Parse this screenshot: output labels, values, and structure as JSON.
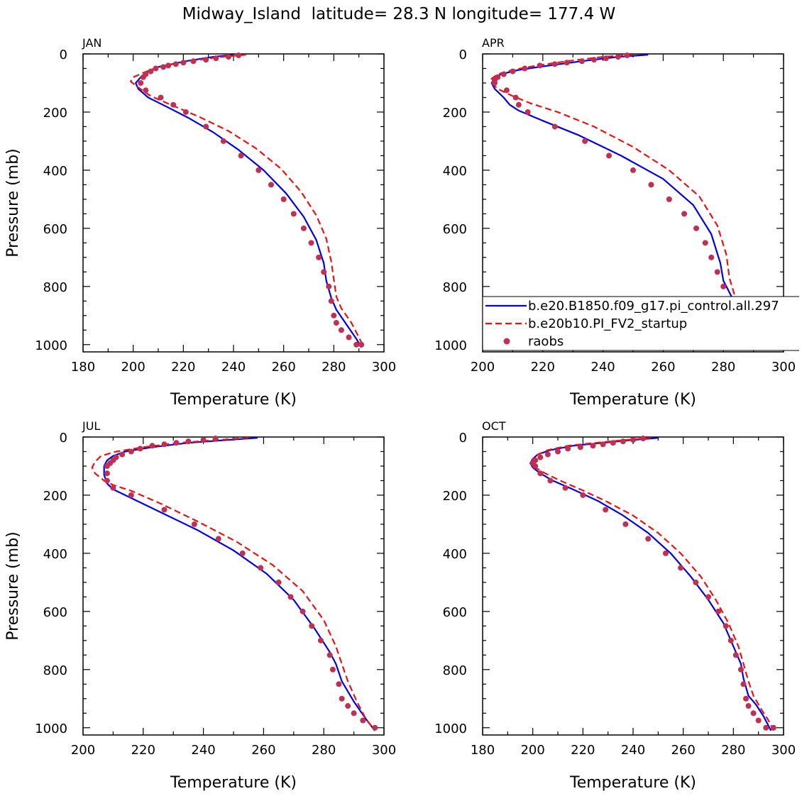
{
  "figure": {
    "title": "Midway_Island  latitude= 28.3 N longitude= 177.4 W"
  },
  "legend": {
    "entries": [
      {
        "label": "b.e20.B1850.f09_g17.pi_control.all.297",
        "style": "solid",
        "color": "#0000ee"
      },
      {
        "label": "b.e20b10.PI_FV2_startup",
        "style": "dashed",
        "color": "#ee1111"
      },
      {
        "label": "raobs",
        "style": "dots",
        "color": "#c03050"
      }
    ]
  },
  "chart_data": [
    {
      "type": "line",
      "title": "JAN",
      "xlabel": "Temperature (K)",
      "ylabel": "Pressure (mb)",
      "xlim": [
        180,
        300
      ],
      "ylim": [
        1025,
        0
      ],
      "xticks": [
        "180",
        "200",
        "220",
        "240",
        "260",
        "280",
        "300"
      ],
      "yticks": [
        "0",
        "200",
        "400",
        "600",
        "800",
        "1000"
      ],
      "grid": false,
      "series": [
        {
          "name": "b.e20.B1850.f09_g17.pi_control.all.297",
          "style": "solid",
          "x": [
            240,
            232,
            221,
            210,
            205,
            203,
            201,
            202,
            206,
            213,
            222,
            232,
            242,
            252,
            261,
            268,
            273,
            276,
            277,
            279,
            281,
            285,
            289,
            291
          ],
          "y": [
            3,
            10,
            25,
            45,
            65,
            80,
            100,
            120,
            150,
            180,
            220,
            270,
            330,
            400,
            480,
            560,
            640,
            720,
            780,
            840,
            880,
            930,
            980,
            1010
          ]
        },
        {
          "name": "b.e20b10.PI_FV2_startup",
          "style": "dashed",
          "x": [
            245,
            235,
            222,
            210,
            204,
            200,
            199,
            202,
            207,
            215,
            226,
            238,
            249,
            259,
            267,
            273,
            277,
            279,
            280,
            281,
            283,
            287,
            290,
            292
          ],
          "y": [
            3,
            10,
            25,
            45,
            65,
            80,
            95,
            115,
            145,
            175,
            215,
            265,
            325,
            395,
            475,
            555,
            635,
            715,
            775,
            835,
            875,
            925,
            975,
            1010
          ]
        },
        {
          "name": "raobs",
          "style": "dots",
          "x": [
            242,
            238,
            233,
            229,
            224,
            220,
            217,
            214,
            212,
            209,
            207,
            205,
            204,
            203,
            205,
            211,
            216,
            221,
            229,
            236,
            243,
            250,
            255,
            260,
            264,
            268,
            271,
            274,
            276,
            278,
            279,
            280,
            281,
            283,
            286,
            289,
            291
          ],
          "y": [
            5,
            10,
            15,
            20,
            25,
            30,
            35,
            40,
            45,
            50,
            60,
            70,
            80,
            100,
            125,
            150,
            175,
            200,
            250,
            300,
            350,
            400,
            450,
            500,
            550,
            600,
            650,
            700,
            750,
            800,
            850,
            900,
            925,
            950,
            975,
            1000,
            1000
          ]
        }
      ]
    },
    {
      "type": "line",
      "title": "APR",
      "xlabel": "Temperature (K)",
      "ylabel": "",
      "xlim": [
        200,
        300
      ],
      "ylim": [
        1025,
        0
      ],
      "xticks": [
        "200",
        "220",
        "240",
        "260",
        "280",
        "300"
      ],
      "yticks": [
        "0",
        "200",
        "400",
        "600",
        "800",
        "1000"
      ],
      "grid": false,
      "series": [
        {
          "name": "b.e20.B1850.f09_g17.pi_control.all.297",
          "style": "solid",
          "x": [
            255,
            245,
            233,
            222,
            212,
            206,
            204,
            203,
            204,
            207,
            209,
            212,
            220,
            232,
            246,
            260,
            270,
            276,
            279,
            280,
            283,
            286,
            289,
            290
          ],
          "y": [
            3,
            10,
            25,
            40,
            55,
            70,
            85,
            100,
            120,
            150,
            175,
            195,
            230,
            280,
            350,
            430,
            520,
            620,
            720,
            780,
            840,
            900,
            960,
            1010
          ]
        },
        {
          "name": "b.e20b10.PI_FV2_startup",
          "style": "dashed",
          "x": [
            250,
            240,
            228,
            218,
            210,
            205,
            203,
            203,
            205,
            210,
            216,
            225,
            237,
            250,
            262,
            272,
            278,
            281,
            282,
            284,
            287,
            290,
            293
          ],
          "y": [
            3,
            10,
            25,
            40,
            55,
            70,
            85,
            100,
            120,
            145,
            170,
            200,
            250,
            320,
            400,
            490,
            590,
            690,
            770,
            840,
            900,
            960,
            1010
          ]
        },
        {
          "name": "raobs",
          "style": "dots",
          "x": [
            248,
            245,
            241,
            237,
            233,
            228,
            224,
            219,
            214,
            210,
            207,
            205,
            204,
            204,
            208,
            211,
            212,
            215,
            224,
            234,
            242,
            250,
            256,
            262,
            267,
            271,
            274,
            276,
            278,
            280,
            281,
            282,
            284,
            287,
            290,
            292
          ],
          "y": [
            5,
            10,
            15,
            20,
            25,
            30,
            35,
            40,
            50,
            60,
            70,
            80,
            90,
            100,
            125,
            150,
            175,
            200,
            250,
            300,
            350,
            400,
            450,
            500,
            550,
            600,
            650,
            700,
            750,
            800,
            850,
            900,
            925,
            950,
            975,
            1000
          ]
        }
      ]
    },
    {
      "type": "line",
      "title": "JUL",
      "xlabel": "Temperature (K)",
      "ylabel": "Pressure (mb)",
      "xlim": [
        200,
        300
      ],
      "ylim": [
        1025,
        0
      ],
      "xticks": [
        "200",
        "220",
        "240",
        "260",
        "280",
        "300"
      ],
      "yticks": [
        "0",
        "200",
        "400",
        "600",
        "800",
        "1000"
      ],
      "grid": false,
      "series": [
        {
          "name": "b.e20.B1850.f09_g17.pi_control.all.297",
          "style": "solid",
          "x": [
            258,
            248,
            235,
            223,
            214,
            210,
            208,
            207,
            207,
            208,
            210,
            216,
            226,
            238,
            250,
            261,
            270,
            277,
            282,
            284,
            286,
            290,
            294,
            297
          ],
          "y": [
            3,
            10,
            20,
            35,
            50,
            65,
            80,
            100,
            130,
            160,
            180,
            210,
            260,
            320,
            390,
            470,
            560,
            660,
            740,
            780,
            840,
            910,
            970,
            1010
          ]
        },
        {
          "name": "b.e20b10.PI_FV2_startup",
          "style": "dashed",
          "x": [
            255,
            245,
            232,
            220,
            211,
            206,
            204,
            203,
            204,
            207,
            210,
            216,
            226,
            238,
            251,
            263,
            273,
            280,
            284,
            286,
            288,
            291,
            294,
            297
          ],
          "y": [
            3,
            10,
            20,
            35,
            50,
            65,
            85,
            105,
            125,
            150,
            165,
            185,
            230,
            290,
            360,
            440,
            530,
            630,
            720,
            780,
            840,
            910,
            970,
            1010
          ]
        },
        {
          "name": "raobs",
          "style": "dots",
          "x": [
            244,
            240,
            235,
            231,
            227,
            223,
            219,
            216,
            213,
            211,
            210,
            209,
            208,
            208,
            208,
            210,
            216,
            227,
            237,
            245,
            253,
            259,
            265,
            269,
            273,
            276,
            279,
            282,
            283,
            285,
            286,
            288,
            290,
            293,
            297
          ],
          "y": [
            5,
            10,
            15,
            20,
            25,
            30,
            40,
            50,
            60,
            70,
            80,
            90,
            100,
            125,
            150,
            175,
            200,
            250,
            300,
            350,
            400,
            450,
            500,
            550,
            600,
            650,
            700,
            750,
            800,
            850,
            900,
            925,
            950,
            975,
            1000
          ]
        }
      ]
    },
    {
      "type": "line",
      "title": "OCT",
      "xlabel": "Temperature (K)",
      "ylabel": "",
      "xlim": [
        180,
        300
      ],
      "ylim": [
        1025,
        0
      ],
      "xticks": [
        "180",
        "200",
        "220",
        "240",
        "260",
        "280",
        "300"
      ],
      "yticks": [
        "0",
        "200",
        "400",
        "600",
        "800",
        "1000"
      ],
      "grid": false,
      "series": [
        {
          "name": "b.e20.B1850.f09_g17.pi_control.all.297",
          "style": "solid",
          "x": [
            250,
            240,
            228,
            216,
            207,
            202,
            200,
            199,
            200,
            203,
            208,
            216,
            226,
            236,
            246,
            255,
            263,
            270,
            276,
            280,
            283,
            284,
            285,
            286,
            289,
            292,
            295
          ],
          "y": [
            3,
            10,
            20,
            30,
            45,
            60,
            75,
            90,
            105,
            125,
            150,
            180,
            220,
            270,
            330,
            400,
            480,
            560,
            640,
            720,
            780,
            830,
            860,
            890,
            920,
            960,
            1010
          ]
        },
        {
          "name": "b.e20b10.PI_FV2_startup",
          "style": "dashed",
          "x": [
            247,
            237,
            225,
            214,
            206,
            202,
            200,
            200,
            201,
            205,
            211,
            219,
            229,
            240,
            250,
            259,
            267,
            273,
            278,
            282,
            284,
            286,
            288,
            291,
            294,
            296
          ],
          "y": [
            3,
            10,
            20,
            30,
            45,
            60,
            75,
            90,
            105,
            125,
            150,
            180,
            220,
            270,
            330,
            400,
            480,
            560,
            640,
            720,
            780,
            840,
            890,
            935,
            975,
            1010
          ]
        },
        {
          "name": "raobs",
          "style": "dots",
          "x": [
            244,
            240,
            236,
            232,
            228,
            224,
            219,
            214,
            210,
            206,
            203,
            201,
            200,
            201,
            203,
            207,
            213,
            220,
            229,
            237,
            246,
            253,
            259,
            265,
            270,
            274,
            277,
            279,
            281,
            283,
            284,
            285,
            286,
            288,
            290,
            293,
            296
          ],
          "y": [
            5,
            10,
            15,
            20,
            25,
            30,
            35,
            40,
            50,
            60,
            70,
            80,
            90,
            100,
            125,
            150,
            175,
            200,
            250,
            300,
            350,
            400,
            450,
            500,
            550,
            600,
            650,
            700,
            750,
            800,
            850,
            900,
            925,
            950,
            975,
            1000,
            1000
          ]
        }
      ]
    }
  ]
}
